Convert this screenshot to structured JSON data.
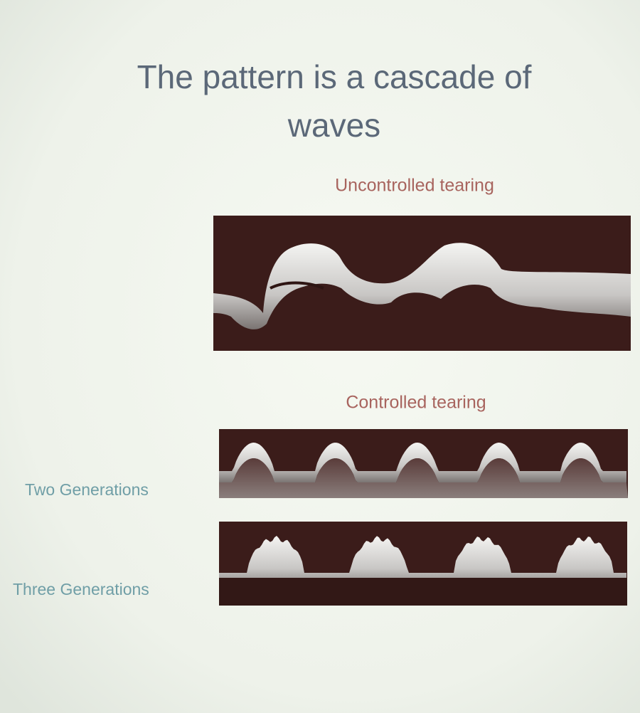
{
  "slide": {
    "title_lines": [
      "The pattern is a cascade of",
      "waves"
    ],
    "uncontrolled_caption": "Uncontrolled tearing",
    "controlled_caption": "Controlled tearing",
    "row_labels": [
      "Two Generations",
      "Three Generations"
    ]
  }
}
